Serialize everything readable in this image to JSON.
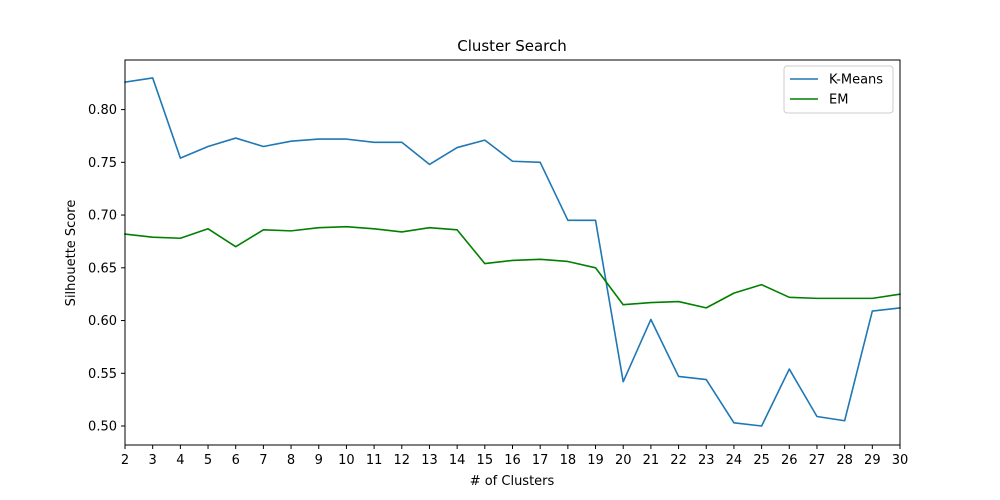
{
  "chart_data": {
    "type": "line",
    "title": "Cluster Search",
    "xlabel": "# of Clusters",
    "ylabel": "Silhouette Score",
    "x": [
      2,
      3,
      4,
      5,
      6,
      7,
      8,
      9,
      10,
      11,
      12,
      13,
      14,
      15,
      16,
      17,
      18,
      19,
      20,
      21,
      22,
      23,
      24,
      25,
      26,
      27,
      28,
      29,
      30
    ],
    "series": [
      {
        "name": "K-Means",
        "color": "#1f77b4",
        "values": [
          0.826,
          0.83,
          0.754,
          0.765,
          0.773,
          0.765,
          0.77,
          0.772,
          0.772,
          0.769,
          0.769,
          0.748,
          0.764,
          0.771,
          0.751,
          0.75,
          0.695,
          0.695,
          0.542,
          0.601,
          0.547,
          0.544,
          0.503,
          0.5,
          0.554,
          0.509,
          0.505,
          0.609,
          0.612
        ]
      },
      {
        "name": "EM",
        "color": "#008000",
        "values": [
          0.682,
          0.679,
          0.678,
          0.687,
          0.67,
          0.686,
          0.685,
          0.688,
          0.689,
          0.687,
          0.684,
          0.688,
          0.686,
          0.654,
          0.657,
          0.658,
          0.656,
          0.65,
          0.615,
          0.617,
          0.618,
          0.612,
          0.626,
          0.634,
          0.622,
          0.621,
          0.621,
          0.621,
          0.625
        ]
      }
    ],
    "xlim": [
      2,
      30
    ],
    "ylim": [
      0.482,
      0.847
    ],
    "xticks": [
      "2",
      "3",
      "4",
      "5",
      "6",
      "7",
      "8",
      "9",
      "10",
      "11",
      "12",
      "13",
      "14",
      "15",
      "16",
      "17",
      "18",
      "19",
      "20",
      "21",
      "22",
      "23",
      "24",
      "25",
      "26",
      "27",
      "28",
      "29",
      "30"
    ],
    "yticks": [
      0.5,
      0.55,
      0.6,
      0.65,
      0.7,
      0.75,
      0.8
    ],
    "ytick_labels": [
      "0.50",
      "0.55",
      "0.60",
      "0.65",
      "0.70",
      "0.75",
      "0.80"
    ],
    "grid": false,
    "legend_position": "top-right"
  }
}
